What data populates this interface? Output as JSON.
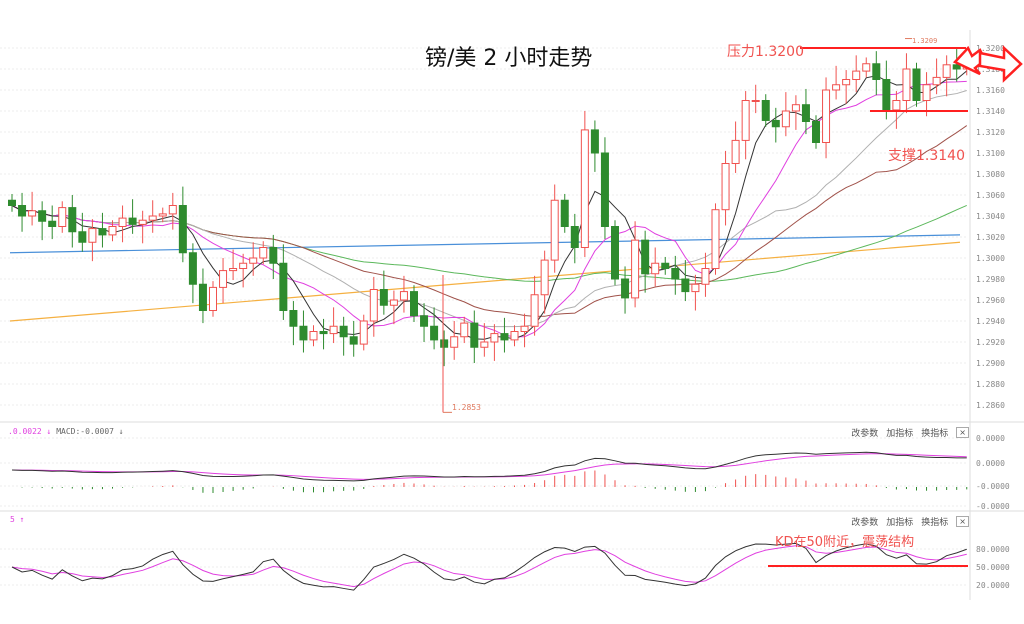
{
  "title": "镑/美  2 小时走势",
  "annotations": {
    "resistance": "压力1.3200",
    "support": "支撑1.3140",
    "kd_note": "KD在50附近，震荡结构",
    "low_label": "1.2853",
    "high_label": "1.3209"
  },
  "macd_header": {
    "dif": ".0.0022 ↓",
    "macd": "MACD:-0.0007 ↓"
  },
  "kd_header": "5 ↑",
  "panel_buttons": {
    "change_params": "改参数",
    "add_indicator": "加指标",
    "switch_indicator": "换指标",
    "close": "×"
  },
  "colors": {
    "up": "#f0524f",
    "down": "#2e8b2e",
    "ma5": "#333333",
    "ma10": "#e040e0",
    "ma20": "#b0b0b0",
    "ma30": "#a0524a",
    "ma60": "#5cb85c",
    "blue": "#4a90d9",
    "orange": "#f5b041",
    "accent": "#ff2020"
  },
  "chart_data": {
    "type": "candlestick",
    "title": "镑/美 2 小时走势",
    "ylim": [
      1.285,
      1.321
    ],
    "y_ticks": [
      "1.3200",
      "1.3180",
      "1.3160",
      "1.3140",
      "1.3120",
      "1.3100",
      "1.3080",
      "1.3060",
      "1.3040",
      "1.3020",
      "1.3000",
      "1.2980",
      "1.2960",
      "1.2940",
      "1.2920",
      "1.2900",
      "1.2880",
      "1.2860"
    ],
    "closes": [
      1.305,
      1.304,
      1.3045,
      1.3035,
      1.303,
      1.3048,
      1.3025,
      1.3015,
      1.3028,
      1.3022,
      1.303,
      1.3038,
      1.3032,
      1.3036,
      1.304,
      1.3042,
      1.305,
      1.3005,
      1.2975,
      1.295,
      1.2972,
      1.2988,
      1.299,
      1.2995,
      1.3,
      1.301,
      1.2995,
      1.295,
      1.2935,
      1.2922,
      1.293,
      1.2928,
      1.2935,
      1.2925,
      1.2918,
      1.294,
      1.297,
      1.2955,
      1.296,
      1.2968,
      1.2945,
      1.2935,
      1.2922,
      1.2915,
      1.2925,
      1.2938,
      1.2915,
      1.292,
      1.2928,
      1.2922,
      1.293,
      1.2935,
      1.2965,
      1.2998,
      1.3055,
      1.303,
      1.301,
      1.3122,
      1.31,
      1.303,
      1.298,
      1.2962,
      1.3017,
      1.2985,
      1.2995,
      1.299,
      1.298,
      1.2968,
      1.2975,
      1.299,
      1.3046,
      1.309,
      1.3112,
      1.315,
      1.315,
      1.3131,
      1.3125,
      1.314,
      1.3146,
      1.313,
      1.311,
      1.316,
      1.3165,
      1.317,
      1.3178,
      1.3185,
      1.317,
      1.3141,
      1.315,
      1.318,
      1.315,
      1.3165,
      1.3172,
      1.3184,
      1.318,
      1.319
    ],
    "long_ma_blue": [
      1.3005,
      1.3022
    ],
    "long_ma_orange": [
      1.294,
      1.3015
    ],
    "resistance": 1.32,
    "support": 1.314,
    "low": 1.2853,
    "high": 1.3209,
    "macd_ticks": [
      "0.0000",
      "0.0000",
      "-0.0000",
      "-0.0000"
    ],
    "kd_ticks": [
      "80.0000",
      "50.0000",
      "20.0000"
    ],
    "kd_line": 50
  }
}
